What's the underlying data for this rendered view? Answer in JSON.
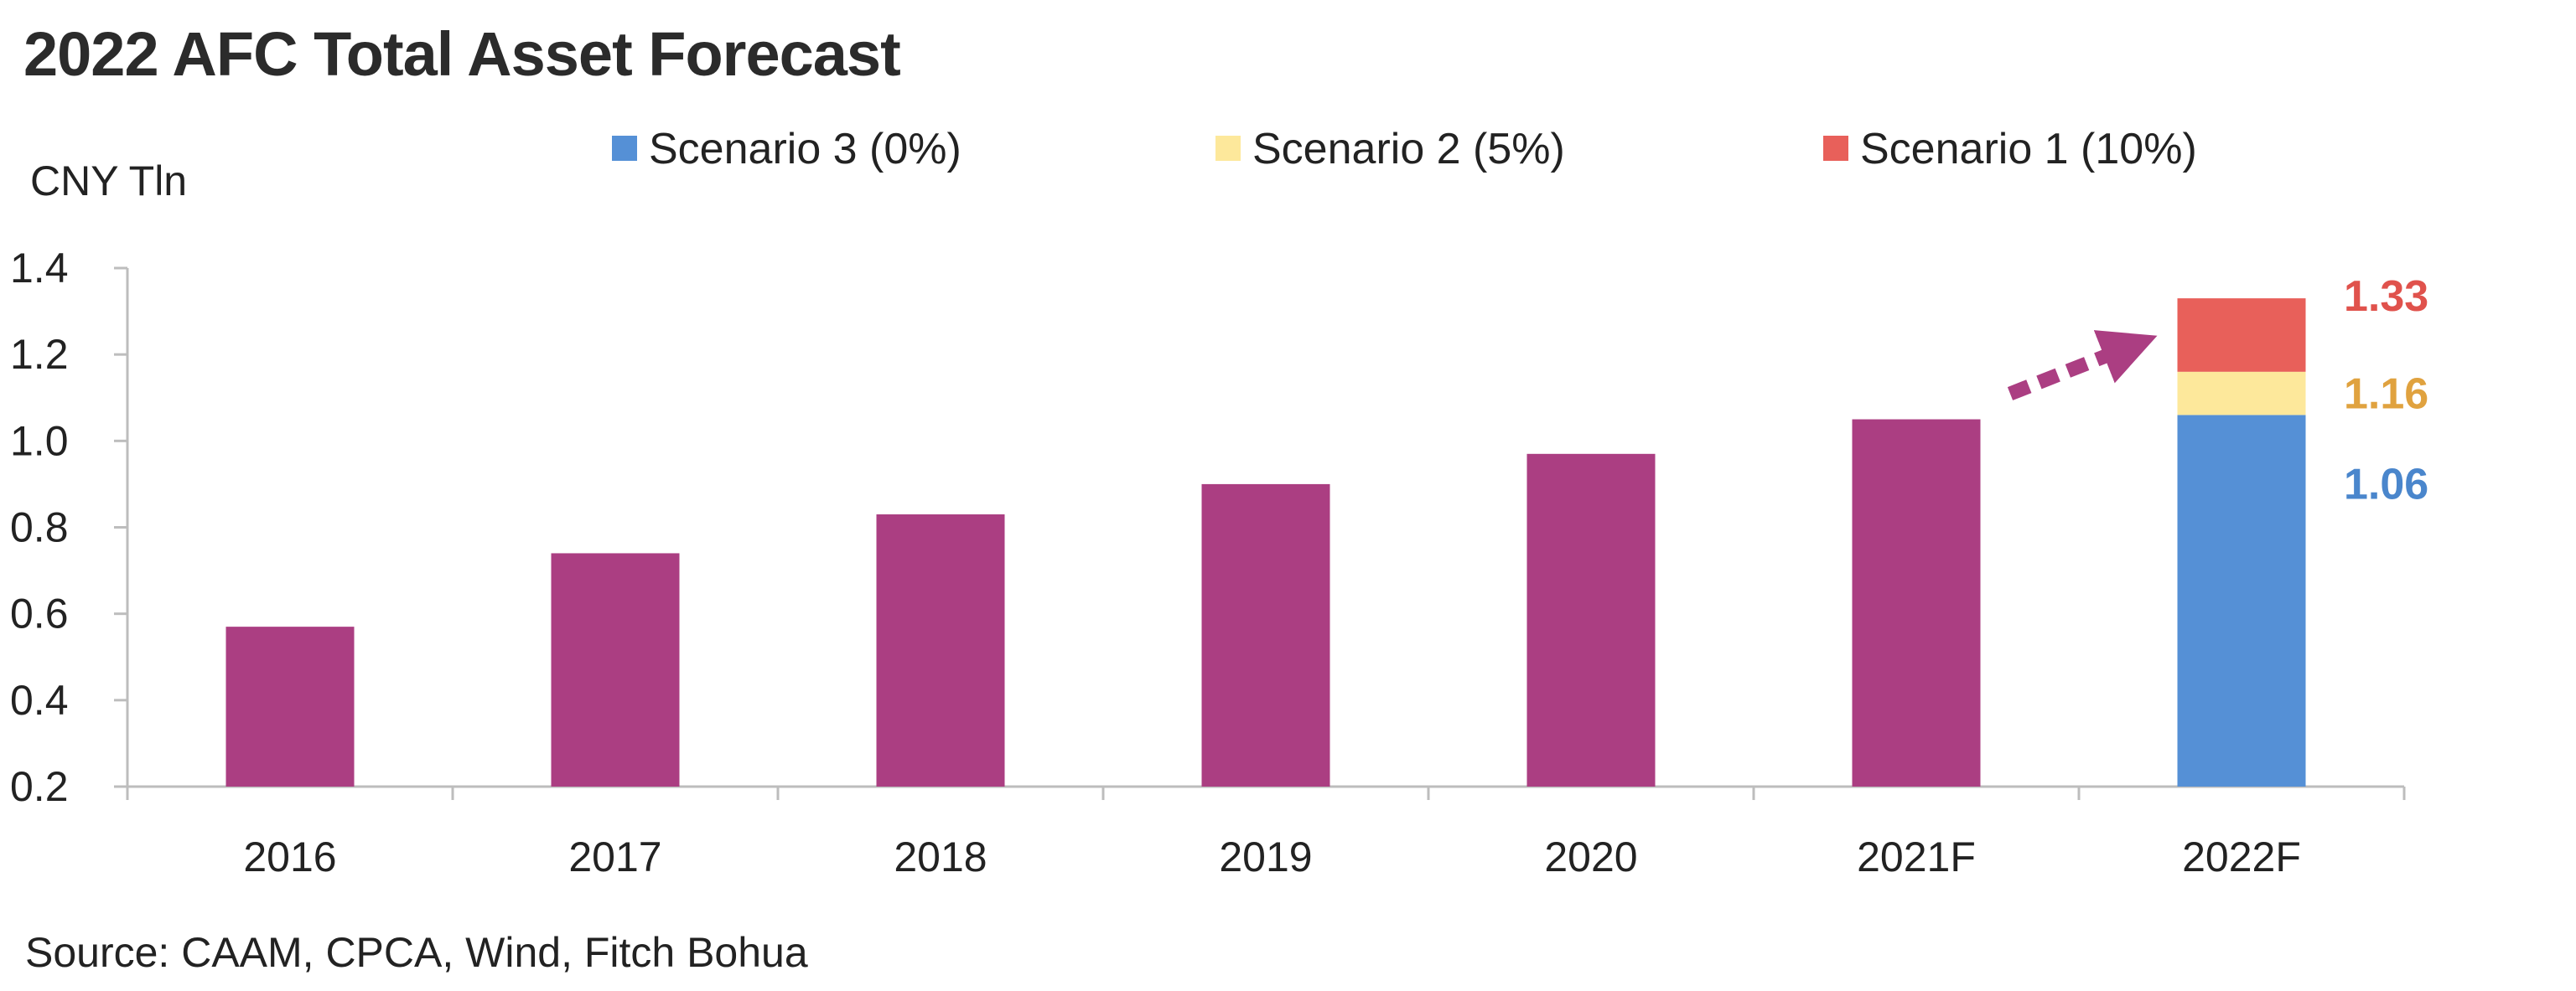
{
  "chart_data": {
    "type": "bar",
    "title": "2022 AFC Total Asset Forecast",
    "unit_label": "CNY Tln",
    "categories": [
      "2016",
      "2017",
      "2018",
      "2019",
      "2020",
      "2021F",
      "2022F"
    ],
    "values": [
      0.57,
      0.74,
      0.83,
      0.9,
      0.97,
      1.05,
      null
    ],
    "bar_color": "#ab3e82",
    "forecast_stack": {
      "category": "2022F",
      "segments": [
        {
          "name": "Scenario 3 (0%)",
          "value": 1.06,
          "label": "1.06",
          "color": "#5590d6",
          "label_color": "#4a86cc"
        },
        {
          "name": "Scenario 2 (5%)",
          "value": 1.16,
          "label": "1.16",
          "color": "#fde89b",
          "label_color": "#e0a23f"
        },
        {
          "name": "Scenario 1 (10%)",
          "value": 1.33,
          "label": "1.33",
          "color": "#e8605a",
          "label_color": "#e0524c"
        }
      ]
    },
    "legend": [
      "Scenario 3 (0%)",
      "Scenario 2 (5%)",
      "Scenario 1 (10%)"
    ],
    "legend_position": "top",
    "y_ticks": [
      "0.2",
      "0.4",
      "0.6",
      "0.8",
      "1.0",
      "1.2",
      "1.4"
    ],
    "ylim": [
      0.2,
      1.4
    ],
    "grid": false,
    "arrow_color": "#ab3e82",
    "annotation": "dotted arrow from 2021F bar to 2022F stack"
  },
  "source": "Source: CAAM, CPCA, Wind, Fitch Bohua"
}
